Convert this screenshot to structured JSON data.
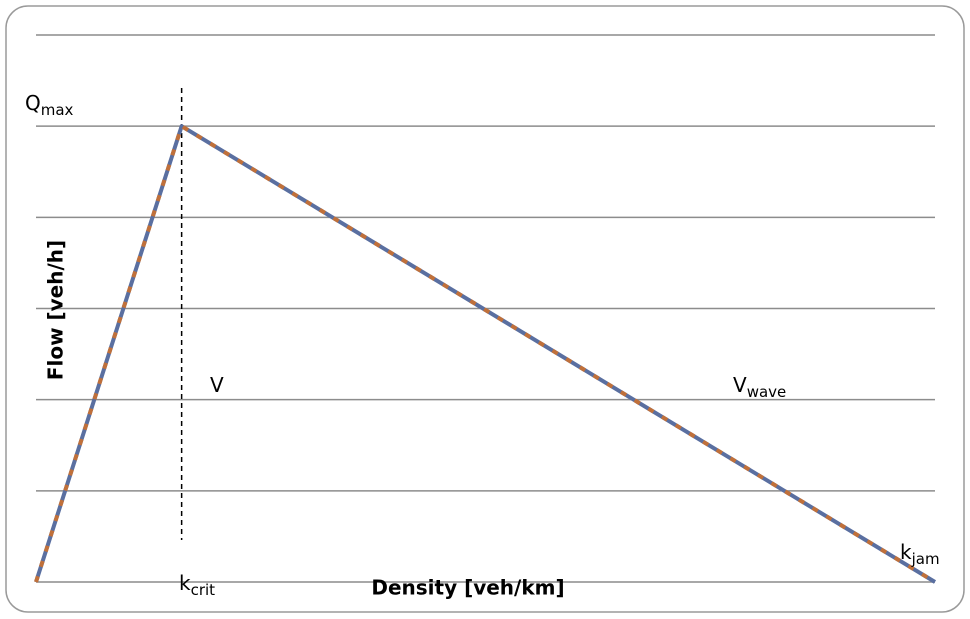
{
  "chart_data": {
    "type": "line",
    "x_label": "Density [veh/km]",
    "y_label": "Flow [veh/h]",
    "x": [
      0,
      16.2,
      100
    ],
    "series": [
      {
        "values": [
          0,
          5,
          0
        ],
        "color": "#5a6fa0"
      }
    ],
    "xlim": [
      0,
      100
    ],
    "ylim": [
      0,
      6
    ],
    "yticks": [
      0,
      1,
      2,
      3,
      4,
      5,
      6
    ],
    "grid": true,
    "annotations": [
      {
        "text": "Q",
        "sub": "max"
      },
      {
        "text": "k",
        "sub": "crit"
      },
      {
        "text": "V"
      },
      {
        "text": "V",
        "sub": "wave"
      },
      {
        "text": "k",
        "sub": "jam"
      }
    ]
  }
}
